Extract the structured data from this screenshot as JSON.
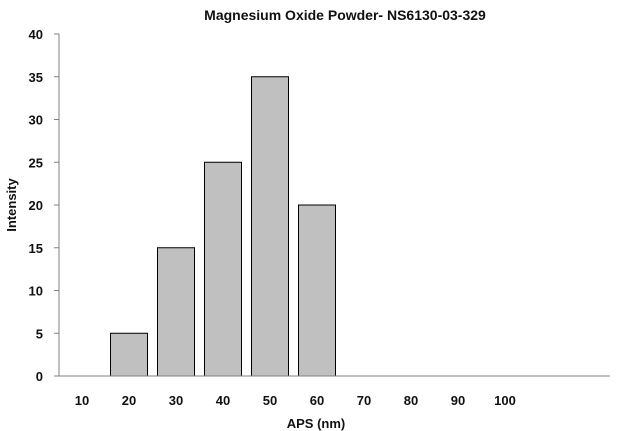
{
  "chart_data": {
    "type": "bar",
    "title": "Magnesium Oxide Powder- NS6130-03-329",
    "xlabel": "APS (nm)",
    "ylabel": "Intensity",
    "categories": [
      "10",
      "20",
      "30",
      "40",
      "50",
      "60",
      "70",
      "80",
      "90",
      "100"
    ],
    "values": [
      0,
      5,
      15,
      25,
      35,
      20,
      0,
      0,
      0,
      0
    ],
    "ylim": [
      0,
      40
    ],
    "yticks": [
      "0",
      "5",
      "10",
      "15",
      "20",
      "25",
      "30",
      "35",
      "40"
    ],
    "grid": false,
    "legend": "none",
    "colors": {
      "bar_fill": "#c0c0c0",
      "bar_stroke": "#000000",
      "axis": "#808080"
    }
  }
}
